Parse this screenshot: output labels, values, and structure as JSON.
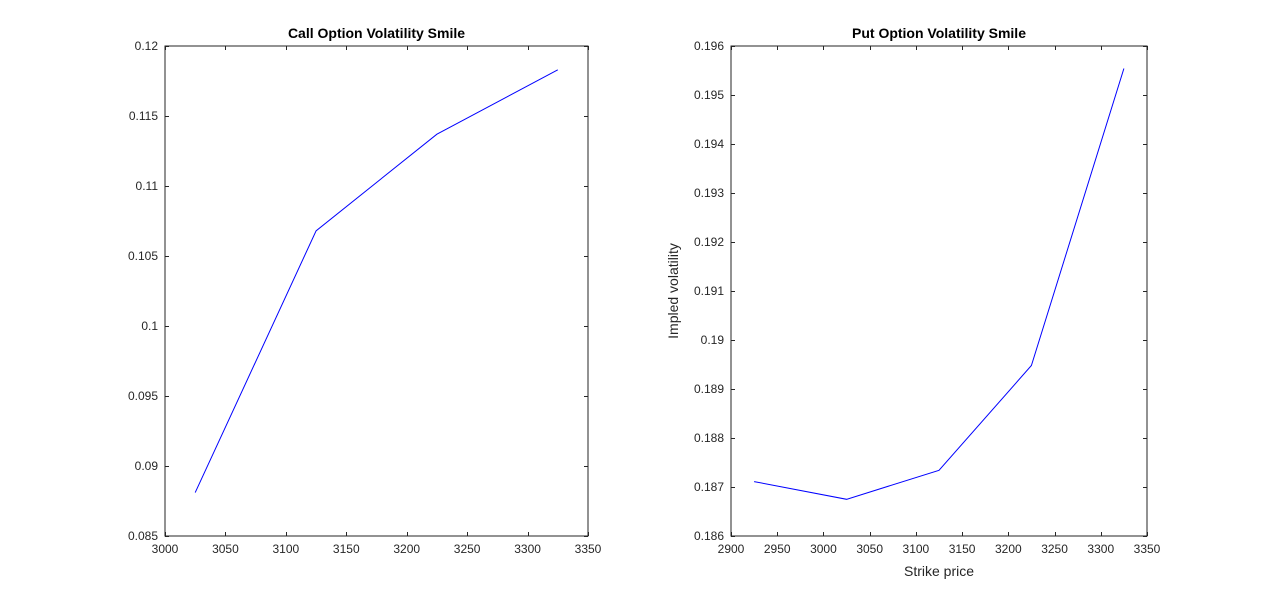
{
  "chart_data": [
    {
      "type": "line",
      "title": "Call Option Volatility Smile",
      "xlabel": "",
      "ylabel": "",
      "xlim": [
        3000,
        3350
      ],
      "ylim": [
        0.085,
        0.12
      ],
      "xticks": [
        3000,
        3050,
        3100,
        3150,
        3200,
        3250,
        3300,
        3350
      ],
      "yticks": [
        0.085,
        0.09,
        0.095,
        0.1,
        0.105,
        0.11,
        0.115,
        0.12
      ],
      "xtick_labels": [
        "3000",
        "3050",
        "3100",
        "3150",
        "3200",
        "3250",
        "3300",
        "3350"
      ],
      "ytick_labels": [
        "0.085",
        "0.09",
        "0.095",
        "0.1",
        "0.105",
        "0.11",
        "0.115",
        "0.12"
      ],
      "grid": false,
      "series": [
        {
          "x": [
            3025,
            3125,
            3225,
            3325
          ],
          "y": [
            0.0881,
            0.1068,
            0.1137,
            0.1183
          ],
          "color": "#0000ff"
        }
      ]
    },
    {
      "type": "line",
      "title": "Put Option Volatility Smile",
      "xlabel": "Strike price",
      "ylabel": "Impled volatility",
      "xlim": [
        2900,
        3350
      ],
      "ylim": [
        0.186,
        0.196
      ],
      "xticks": [
        2900,
        2950,
        3000,
        3050,
        3100,
        3150,
        3200,
        3250,
        3300,
        3350
      ],
      "yticks": [
        0.186,
        0.187,
        0.188,
        0.189,
        0.19,
        0.191,
        0.192,
        0.193,
        0.194,
        0.195,
        0.196
      ],
      "xtick_labels": [
        "2900",
        "2950",
        "3000",
        "3050",
        "3100",
        "3150",
        "3200",
        "3250",
        "3300",
        "3350"
      ],
      "ytick_labels": [
        "0.186",
        "0.187",
        "0.188",
        "0.189",
        "0.19",
        "0.191",
        "0.192",
        "0.193",
        "0.194",
        "0.195",
        "0.196"
      ],
      "grid": false,
      "series": [
        {
          "x": [
            2925,
            3025,
            3125,
            3225,
            3325
          ],
          "y": [
            0.18711,
            0.18675,
            0.18734,
            0.18948,
            0.19554
          ],
          "color": "#0000ff"
        }
      ]
    }
  ]
}
